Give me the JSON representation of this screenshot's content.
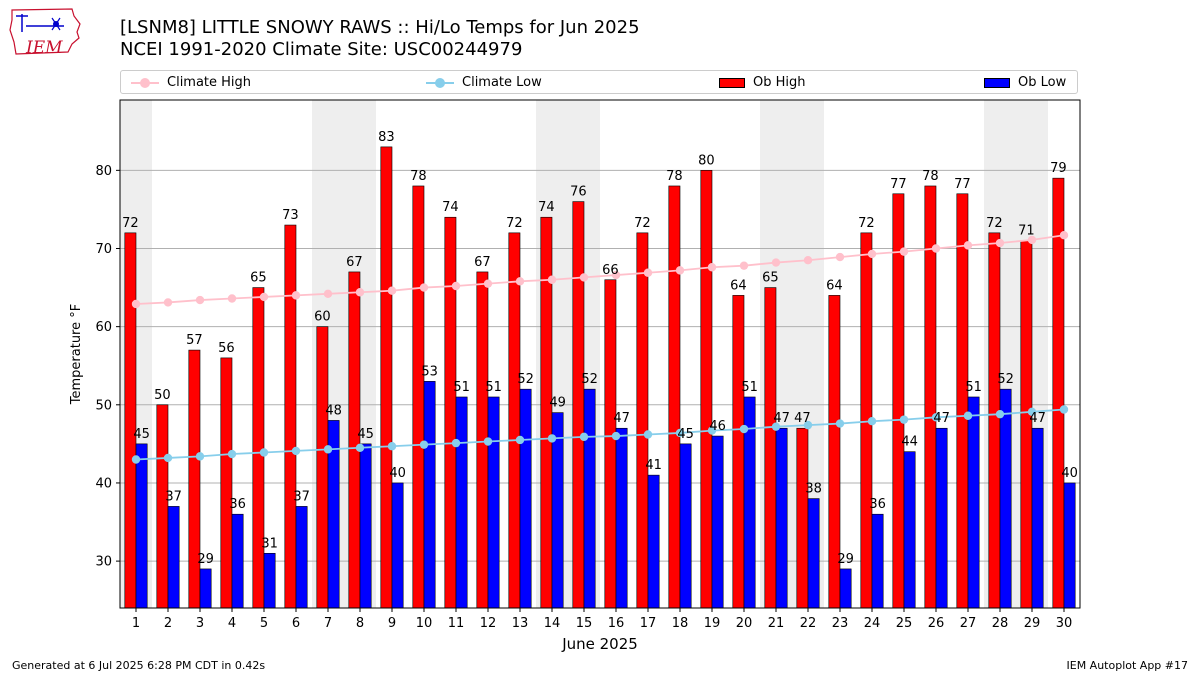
{
  "header": {
    "title_line1": "[LSNM8] LITTLE SNOWY RAWS :: Hi/Lo Temps for Jun 2025",
    "title_line2": "NCEI 1991-2020 Climate Site: USC00244979",
    "logo_text": "IEM"
  },
  "footer": {
    "generated": "Generated at 6 Jul 2025 6:28 PM CDT in 0.42s",
    "app": "IEM Autoplot App #17"
  },
  "colors": {
    "ob_high": "#ff0000",
    "ob_low": "#0000ff",
    "climate_high": "#ffc0cb",
    "climate_low": "#87ceeb",
    "weekend_band": "#eeeeee"
  },
  "chart_data": {
    "type": "bar",
    "title": "[LSNM8] LITTLE SNOWY RAWS :: Hi/Lo Temps for Jun 2025",
    "xlabel": "June 2025",
    "ylabel": "Temperature °F",
    "ylim": [
      24,
      89
    ],
    "yticks": [
      30,
      40,
      50,
      60,
      70,
      80
    ],
    "grid": true,
    "legend_position": "top",
    "categories": [
      "1",
      "2",
      "3",
      "4",
      "5",
      "6",
      "7",
      "8",
      "9",
      "10",
      "11",
      "12",
      "13",
      "14",
      "15",
      "16",
      "17",
      "18",
      "19",
      "20",
      "21",
      "22",
      "23",
      "24",
      "25",
      "26",
      "27",
      "28",
      "29",
      "30"
    ],
    "weekend_bands": [
      [
        1,
        1
      ],
      [
        7,
        8
      ],
      [
        14,
        15
      ],
      [
        21,
        22
      ],
      [
        28,
        29
      ]
    ],
    "series": [
      {
        "name": "Ob High",
        "type": "bar",
        "values": [
          72,
          50,
          57,
          56,
          65,
          73,
          60,
          67,
          83,
          78,
          74,
          67,
          72,
          74,
          76,
          66,
          72,
          78,
          80,
          64,
          65,
          47,
          64,
          72,
          77,
          78,
          77,
          72,
          71,
          79
        ]
      },
      {
        "name": "Ob Low",
        "type": "bar",
        "values": [
          45,
          37,
          29,
          36,
          31,
          37,
          48,
          45,
          40,
          53,
          51,
          51,
          52,
          49,
          52,
          47,
          41,
          45,
          46,
          51,
          47,
          38,
          29,
          36,
          44,
          47,
          51,
          52,
          47,
          40
        ]
      },
      {
        "name": "Climate High",
        "type": "line",
        "values": [
          62.9,
          63.1,
          63.4,
          63.6,
          63.8,
          64.0,
          64.2,
          64.4,
          64.6,
          65.0,
          65.2,
          65.5,
          65.8,
          66.0,
          66.3,
          66.6,
          66.9,
          67.2,
          67.6,
          67.8,
          68.2,
          68.5,
          68.9,
          69.3,
          69.6,
          70.0,
          70.4,
          70.7,
          71.1,
          71.7
        ]
      },
      {
        "name": "Climate Low",
        "type": "line",
        "values": [
          43.0,
          43.2,
          43.4,
          43.7,
          43.9,
          44.1,
          44.3,
          44.5,
          44.7,
          44.9,
          45.1,
          45.3,
          45.5,
          45.7,
          45.9,
          46.0,
          46.2,
          46.4,
          46.7,
          46.9,
          47.2,
          47.4,
          47.6,
          47.9,
          48.1,
          48.4,
          48.6,
          48.8,
          49.1,
          49.4
        ]
      }
    ]
  }
}
